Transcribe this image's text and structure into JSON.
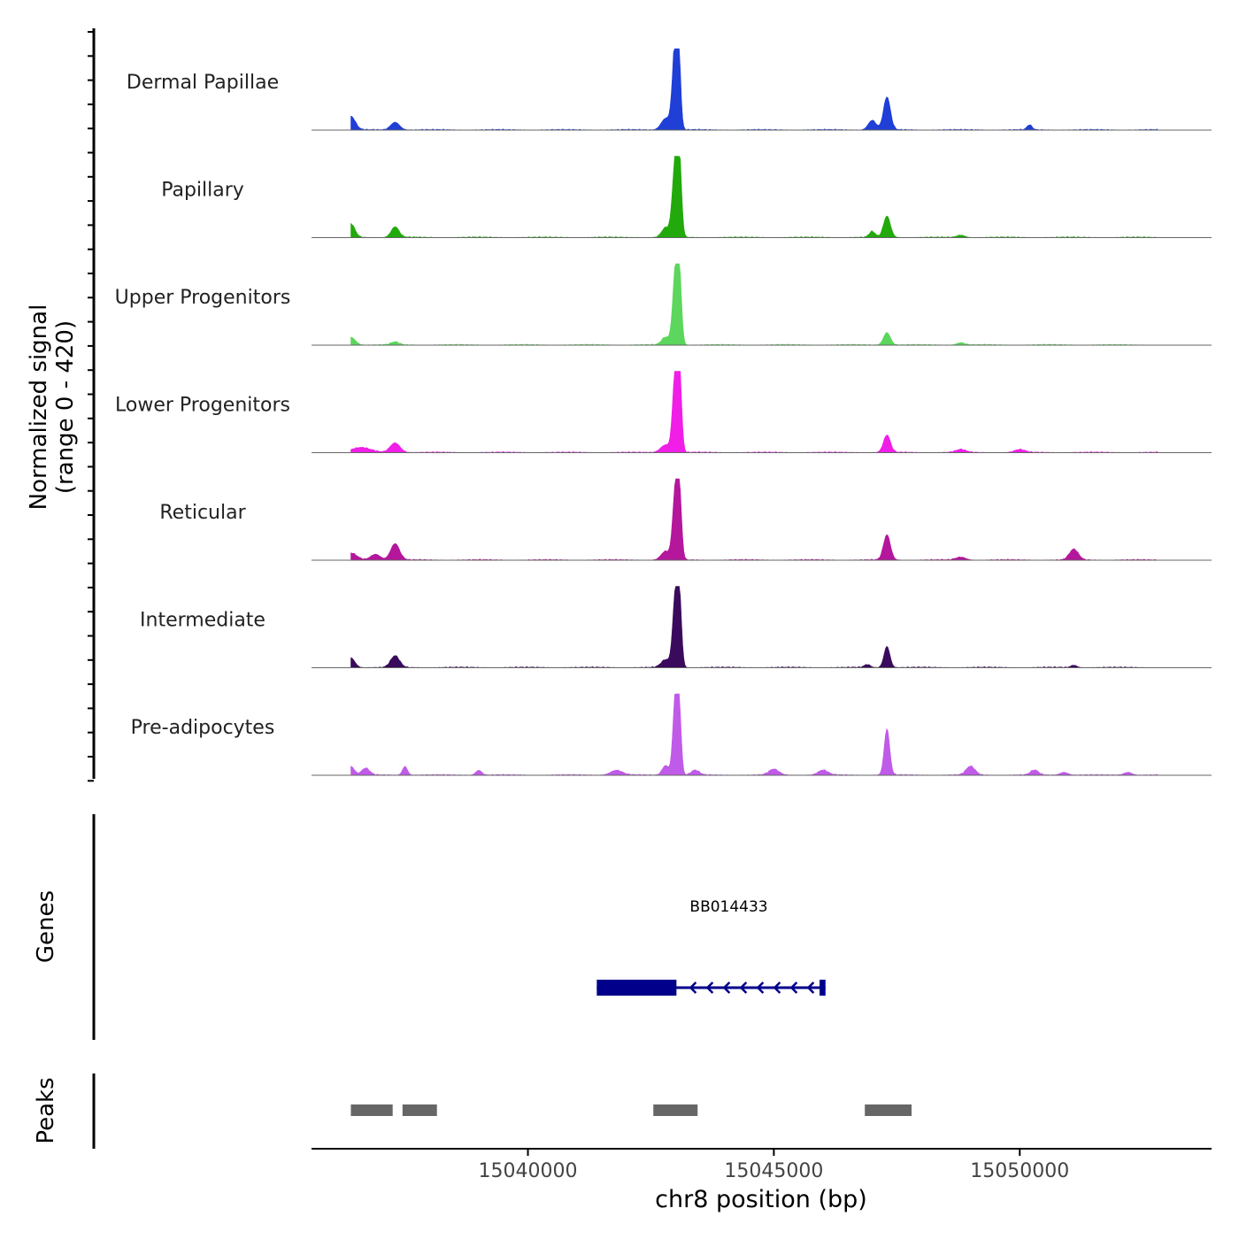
{
  "chart_data": {
    "type": "area",
    "title": "",
    "ylabel_line1": "Normalized signal",
    "ylabel_line2": "(range 0 - 420)",
    "genes_label": "Genes",
    "peaks_label": "Peaks",
    "xlabel": "chr8 position (bp)",
    "xlim": [
      15035600,
      15053900
    ],
    "ylim": [
      0,
      420
    ],
    "xticks": [
      15040000,
      15045000,
      15050000
    ],
    "xtick_labels": [
      "15040000",
      "15045000",
      "15050000"
    ],
    "tracks": [
      {
        "name": "Dermal Papillae",
        "color": "#1f3fd6",
        "peaks": [
          [
            15036400,
            70,
            90
          ],
          [
            15037300,
            40,
            90
          ],
          [
            15043000,
            420,
            60
          ],
          [
            15043050,
            380,
            45
          ],
          [
            15042800,
            60,
            90
          ],
          [
            15047300,
            170,
            70
          ],
          [
            15047000,
            50,
            80
          ],
          [
            15050200,
            25,
            50
          ]
        ]
      },
      {
        "name": "Papillary",
        "color": "#22a90b",
        "peaks": [
          [
            15036400,
            70,
            80
          ],
          [
            15037300,
            55,
            80
          ],
          [
            15043000,
            400,
            60
          ],
          [
            15043080,
            340,
            45
          ],
          [
            15042800,
            50,
            80
          ],
          [
            15047300,
            110,
            70
          ],
          [
            15047000,
            30,
            60
          ],
          [
            15048800,
            12,
            80
          ]
        ]
      },
      {
        "name": "Upper Progenitors",
        "color": "#5cd65c",
        "peaks": [
          [
            15036400,
            40,
            90
          ],
          [
            15037300,
            15,
            80
          ],
          [
            15043000,
            380,
            55
          ],
          [
            15043080,
            330,
            45
          ],
          [
            15042800,
            40,
            80
          ],
          [
            15047300,
            65,
            70
          ],
          [
            15048800,
            12,
            80
          ]
        ]
      },
      {
        "name": "Lower Progenitors",
        "color": "#f01ee6",
        "peaks": [
          [
            15036600,
            25,
            200
          ],
          [
            15037300,
            50,
            100
          ],
          [
            15043000,
            420,
            55
          ],
          [
            15043080,
            380,
            45
          ],
          [
            15042800,
            40,
            100
          ],
          [
            15047300,
            90,
            70
          ],
          [
            15048800,
            15,
            100
          ],
          [
            15050000,
            15,
            100
          ]
        ]
      },
      {
        "name": "Reticular",
        "color": "#b4169c",
        "peaks": [
          [
            15036400,
            35,
            120
          ],
          [
            15036900,
            30,
            100
          ],
          [
            15037300,
            85,
            90
          ],
          [
            15043000,
            360,
            55
          ],
          [
            15043080,
            320,
            45
          ],
          [
            15042800,
            45,
            90
          ],
          [
            15047300,
            130,
            70
          ],
          [
            15048800,
            15,
            100
          ],
          [
            15051100,
            55,
            90
          ]
        ]
      },
      {
        "name": "Intermediate",
        "color": "#3a0a5c",
        "peaks": [
          [
            15036400,
            50,
            80
          ],
          [
            15037300,
            60,
            90
          ],
          [
            15043000,
            370,
            55
          ],
          [
            15043080,
            330,
            45
          ],
          [
            15042800,
            40,
            90
          ],
          [
            15047300,
            110,
            60
          ],
          [
            15046900,
            15,
            60
          ],
          [
            15051100,
            12,
            60
          ]
        ]
      },
      {
        "name": "Pre-adipocytes",
        "color": "#c05ae8",
        "peaks": [
          [
            15036400,
            45,
            70
          ],
          [
            15036700,
            35,
            80
          ],
          [
            15037500,
            45,
            50
          ],
          [
            15039000,
            25,
            60
          ],
          [
            15041800,
            25,
            120
          ],
          [
            15043000,
            420,
            50
          ],
          [
            15043080,
            300,
            40
          ],
          [
            15042800,
            50,
            70
          ],
          [
            15043400,
            25,
            80
          ],
          [
            15045000,
            30,
            100
          ],
          [
            15046000,
            25,
            100
          ],
          [
            15047300,
            240,
            55
          ],
          [
            15049000,
            45,
            90
          ],
          [
            15050300,
            25,
            80
          ],
          [
            15050900,
            15,
            80
          ],
          [
            15052200,
            15,
            80
          ]
        ]
      }
    ],
    "gene": {
      "name": "BB014433",
      "color": "#00008b",
      "strand": "-",
      "tx_start": 15041400,
      "tx_end": 15046050,
      "exons": [
        [
          15041400,
          15043020
        ],
        [
          15045930,
          15046050
        ]
      ]
    },
    "peak_regions": [
      {
        "start": 15036400,
        "end": 15037250
      },
      {
        "start": 15037450,
        "end": 15038150
      },
      {
        "start": 15042550,
        "end": 15043450
      },
      {
        "start": 15046850,
        "end": 15047800
      }
    ],
    "peak_color": "#666666"
  }
}
